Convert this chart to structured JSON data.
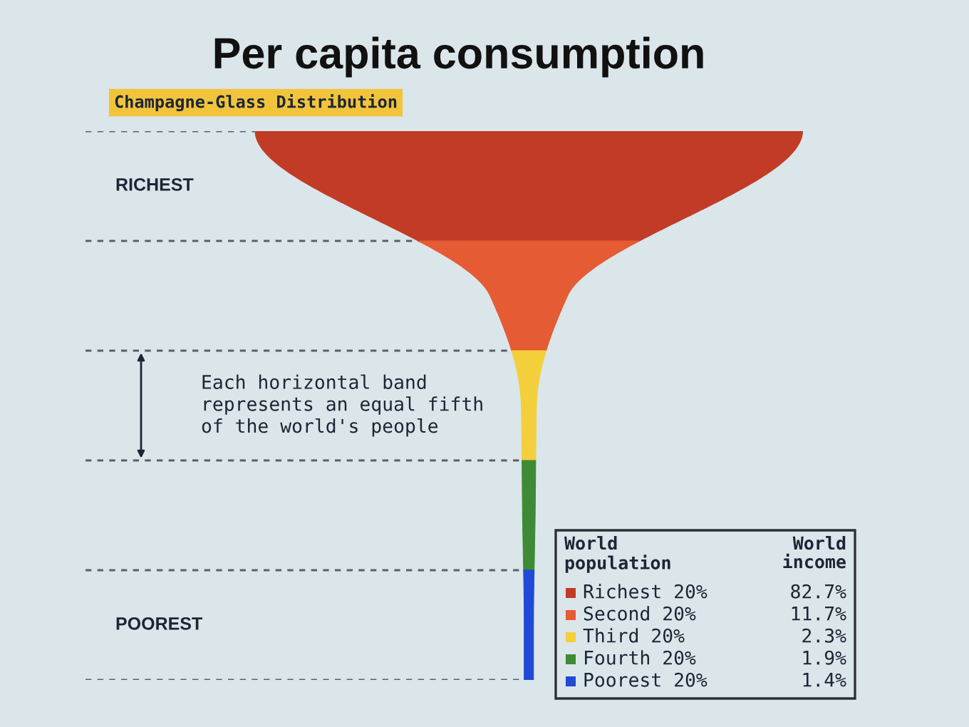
{
  "chart_data": {
    "type": "other",
    "title": "Per capita consumption",
    "subtitle": "Champagne-Glass Distribution",
    "categories": [
      "Richest 20%",
      "Second 20%",
      "Third 20%",
      "Fourth 20%",
      "Poorest 20%"
    ],
    "values": [
      82.7,
      11.7,
      2.3,
      1.9,
      1.4
    ],
    "colors": [
      "#c23b26",
      "#e55b34",
      "#f3cf3b",
      "#3f8a34",
      "#1f49d6"
    ],
    "value_labels": [
      "82.7%",
      "11.7%",
      "2.3%",
      "1.9%",
      "1.4%"
    ],
    "legend_title": "World\npopulation",
    "xlabel": "World\nincome",
    "annotations": [
      "RICHEST",
      "Each horizontal band\nrepresents an equal fifth\nof the world's people",
      "POOREST"
    ]
  }
}
